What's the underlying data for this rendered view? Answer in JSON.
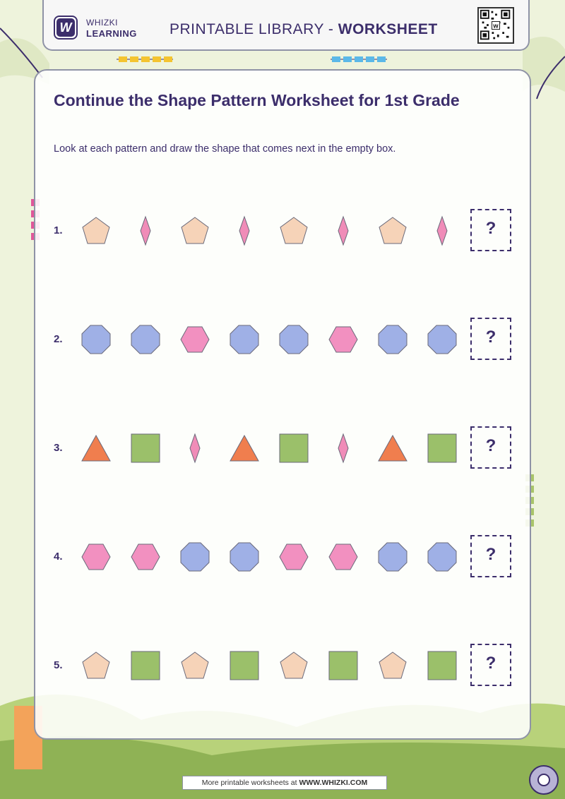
{
  "header": {
    "brand_line1": "WHIZKI",
    "brand_line2": "LEARNING",
    "logo_letter": "W",
    "title_prefix": "PRINTABLE LIBRARY - ",
    "title_bold": "WORKSHEET"
  },
  "worksheet": {
    "title": "Continue the Shape Pattern Worksheet for 1st Grade",
    "instructions": "Look at each pattern and draw the shape that comes next in the empty box.",
    "answer_placeholder": "?",
    "rows": [
      {
        "number": "1.",
        "shapes": [
          "pentagon",
          "diamond",
          "pentagon",
          "diamond",
          "pentagon",
          "diamond",
          "pentagon",
          "diamond"
        ]
      },
      {
        "number": "2.",
        "shapes": [
          "octagon",
          "octagon",
          "hexagon",
          "octagon",
          "octagon",
          "hexagon",
          "octagon",
          "octagon"
        ]
      },
      {
        "number": "3.",
        "shapes": [
          "triangle",
          "square",
          "diamond",
          "triangle",
          "square",
          "diamond",
          "triangle",
          "square"
        ]
      },
      {
        "number": "4.",
        "shapes": [
          "hexagon",
          "hexagon",
          "octagon",
          "octagon",
          "hexagon",
          "hexagon",
          "octagon",
          "octagon"
        ]
      },
      {
        "number": "5.",
        "shapes": [
          "pentagon",
          "square",
          "pentagon",
          "square",
          "pentagon",
          "square",
          "pentagon",
          "square"
        ]
      }
    ]
  },
  "shape_colors": {
    "pentagon": "#f6d3b8",
    "diamond": "#f08cb8",
    "octagon": "#9fb0e6",
    "hexagon": "#f290c0",
    "triangle": "#f07e4e",
    "square": "#9bc06a"
  },
  "footer": {
    "prefix": "More printable worksheets at ",
    "site": "WWW.WHIZKI.COM"
  }
}
